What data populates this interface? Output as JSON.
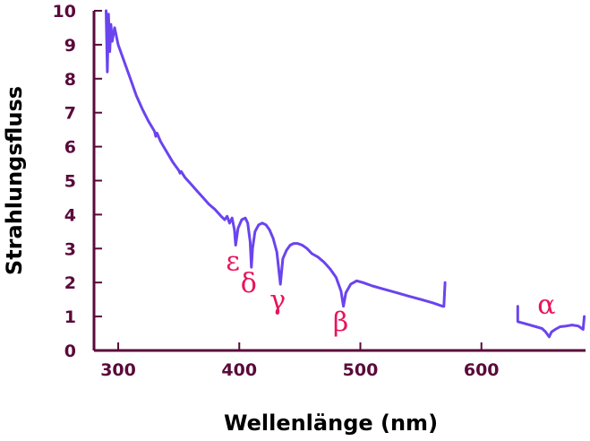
{
  "chart_data": {
    "type": "line",
    "title": "",
    "xlabel": "Wellenlänge (nm)",
    "ylabel": "Strahlungsfluss",
    "xlim": [
      280,
      686
    ],
    "ylim": [
      0,
      10
    ],
    "xticks": [
      300,
      400,
      500,
      600
    ],
    "yticks": [
      0,
      1,
      2,
      3,
      4,
      5,
      6,
      7,
      8,
      9,
      10
    ],
    "grid": false,
    "colors": {
      "line": "#6a44ee",
      "axis": "#5a0a3a",
      "labels": "#e8145a"
    },
    "series": [
      {
        "segments": [
          [
            [
              290,
              10.0
            ],
            [
              291,
              8.2
            ],
            [
              292,
              9.9
            ],
            [
              293,
              8.8
            ],
            [
              294,
              9.6
            ],
            [
              295,
              9.1
            ],
            [
              297,
              9.5
            ],
            [
              300,
              9.0
            ],
            [
              305,
              8.5
            ],
            [
              310,
              8.0
            ],
            [
              315,
              7.5
            ],
            [
              320,
              7.1
            ],
            [
              325,
              6.75
            ],
            [
              330,
              6.45
            ],
            [
              331,
              6.3
            ],
            [
              332,
              6.4
            ],
            [
              335,
              6.15
            ],
            [
              340,
              5.85
            ],
            [
              345,
              5.55
            ],
            [
              350,
              5.3
            ],
            [
              351,
              5.22
            ],
            [
              352,
              5.27
            ],
            [
              355,
              5.1
            ],
            [
              360,
              4.9
            ],
            [
              365,
              4.7
            ],
            [
              370,
              4.5
            ],
            [
              375,
              4.3
            ],
            [
              380,
              4.15
            ],
            [
              385,
              3.95
            ],
            [
              388,
              3.85
            ],
            [
              390,
              3.95
            ],
            [
              392,
              3.75
            ],
            [
              394,
              3.9
            ],
            [
              396,
              3.55
            ],
            [
              397,
              3.1
            ],
            [
              399,
              3.6
            ],
            [
              402,
              3.85
            ],
            [
              405,
              3.9
            ],
            [
              407,
              3.75
            ],
            [
              409,
              3.2
            ],
            [
              410,
              2.45
            ],
            [
              411,
              3.0
            ],
            [
              413,
              3.5
            ],
            [
              416,
              3.7
            ],
            [
              419,
              3.75
            ],
            [
              422,
              3.7
            ],
            [
              425,
              3.55
            ],
            [
              428,
              3.3
            ],
            [
              431,
              2.9
            ],
            [
              434,
              1.95
            ],
            [
              436,
              2.7
            ],
            [
              439,
              2.95
            ],
            [
              442,
              3.1
            ],
            [
              445,
              3.15
            ],
            [
              448,
              3.15
            ],
            [
              452,
              3.1
            ],
            [
              456,
              3.0
            ],
            [
              460,
              2.85
            ],
            [
              465,
              2.75
            ],
            [
              470,
              2.6
            ],
            [
              475,
              2.4
            ],
            [
              480,
              2.15
            ],
            [
              484,
              1.75
            ],
            [
              486,
              1.3
            ],
            [
              488,
              1.7
            ],
            [
              492,
              1.95
            ],
            [
              497,
              2.05
            ],
            [
              502,
              2.0
            ],
            [
              510,
              1.9
            ],
            [
              520,
              1.8
            ],
            [
              530,
              1.7
            ],
            [
              540,
              1.6
            ],
            [
              550,
              1.5
            ],
            [
              560,
              1.4
            ],
            [
              568,
              1.3
            ],
            [
              569,
              1.3
            ],
            [
              570,
              2.0
            ]
          ],
          [
            [
              630,
              1.3
            ],
            [
              630,
              0.85
            ],
            [
              635,
              0.8
            ],
            [
              640,
              0.75
            ],
            [
              645,
              0.7
            ],
            [
              650,
              0.65
            ],
            [
              653,
              0.55
            ],
            [
              656,
              0.4
            ],
            [
              658,
              0.55
            ],
            [
              661,
              0.62
            ],
            [
              665,
              0.7
            ],
            [
              670,
              0.72
            ],
            [
              675,
              0.75
            ],
            [
              680,
              0.72
            ],
            [
              684,
              0.62
            ],
            [
              685,
              1.0
            ]
          ]
        ]
      }
    ],
    "annotations": [
      {
        "text": "ε",
        "x": 397
      },
      {
        "text": "δ",
        "x": 410
      },
      {
        "text": "γ",
        "x": 434
      },
      {
        "text": "β",
        "x": 486
      },
      {
        "text": "α",
        "x": 656
      }
    ]
  }
}
